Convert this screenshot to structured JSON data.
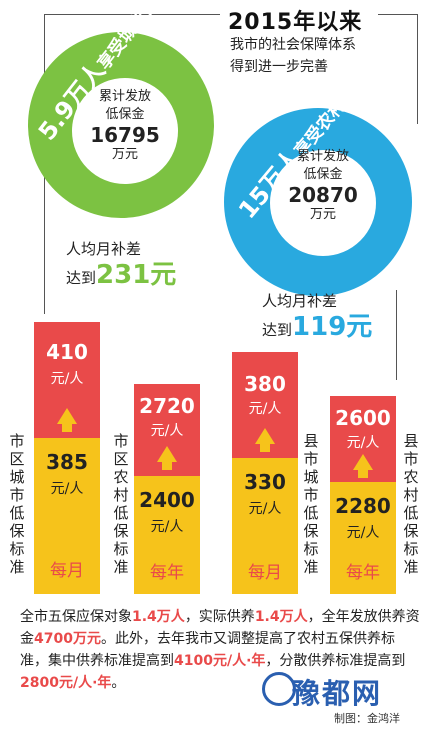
{
  "header": {
    "title": "2015年以来",
    "subtitle": "我市的社会保障体系得到进一步完善"
  },
  "urban": {
    "arc_label_number": "5.9万人",
    "arc_label_text": "享受城市低保",
    "line1": "累计发放",
    "line2": "低保金",
    "amount": "16795",
    "unit": "万元",
    "subsidy_prefix": "人均月补差",
    "subsidy_reach": "达到",
    "subsidy_value": "231元"
  },
  "rural": {
    "arc_label_number": "15万人",
    "arc_label_text": "享受农村低保",
    "line1": "累计发放",
    "line2": "低保金",
    "amount": "20870",
    "unit": "万元",
    "subsidy_prefix": "人均月补差",
    "subsidy_reach": "达到",
    "subsidy_value": "119元"
  },
  "bars": [
    {
      "label": "市区城市低保标准",
      "new_value": "410",
      "new_unit": "元/人",
      "old_value": "385",
      "old_unit": "元/人",
      "period": "每月"
    },
    {
      "label": "市区农村低保标准",
      "new_value": "2720",
      "new_unit": "元/人",
      "old_value": "2400",
      "old_unit": "元/人",
      "period": "每年"
    },
    {
      "label": "县市城市低保标准",
      "new_value": "380",
      "new_unit": "元/人",
      "old_value": "330",
      "old_unit": "元/人",
      "period": "每月"
    },
    {
      "label": "县市农村低保标准",
      "new_value": "2600",
      "new_unit": "元/人",
      "old_value": "2280",
      "old_unit": "元/人",
      "period": "每年"
    }
  ],
  "paragraph": {
    "p1": "全市五保应保对象",
    "h1": "1.4万人",
    "p2": "，实际供养",
    "h2": "1.4万人",
    "p3": "，全年发放供养资金",
    "h3": "4700万元",
    "p4": "。此外，去年我市又调整提高了农村五保供养标准，集中供养标准提高到",
    "h4": "4100元/人·年",
    "p5": "，分散供养标准提高到",
    "h5": "2800元/人·年",
    "p6": "。"
  },
  "footer": {
    "watermark": "豫都网",
    "credit": "制图：金鸿洋"
  },
  "colors": {
    "green": "#7cc242",
    "blue": "#29a9df",
    "red": "#e94a4a",
    "yellow": "#f6c31b"
  }
}
